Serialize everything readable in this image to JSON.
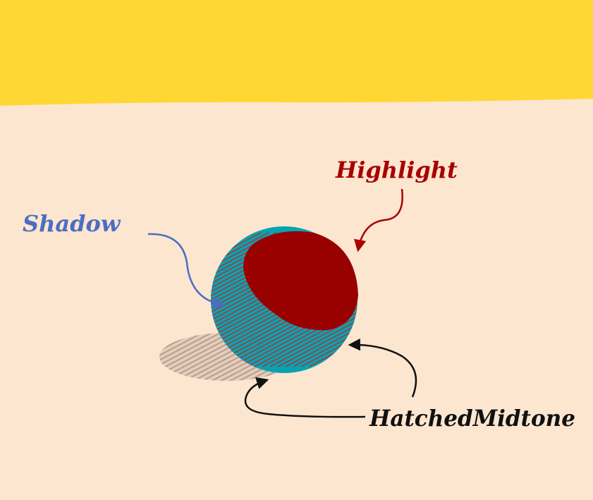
{
  "colors": {
    "background": "#fde6d0",
    "banner": "#fed734",
    "sphere_body": "#06a4b2",
    "highlight": "#990000",
    "hatch": "#a33a3e",
    "ground_shadow": "#b9a194",
    "shadow_label": "#4a6ec4",
    "highlight_label": "#a80000",
    "midtone_label": "#111111"
  },
  "labels": {
    "shadow": "Shadow",
    "highlight": "Highlight",
    "midtone": "HatchedMidtone"
  },
  "icons": {
    "shadow_arrow": "curved-arrow-icon",
    "highlight_arrow": "curved-arrow-icon",
    "midtone_arrows": "curved-arrow-icon"
  }
}
